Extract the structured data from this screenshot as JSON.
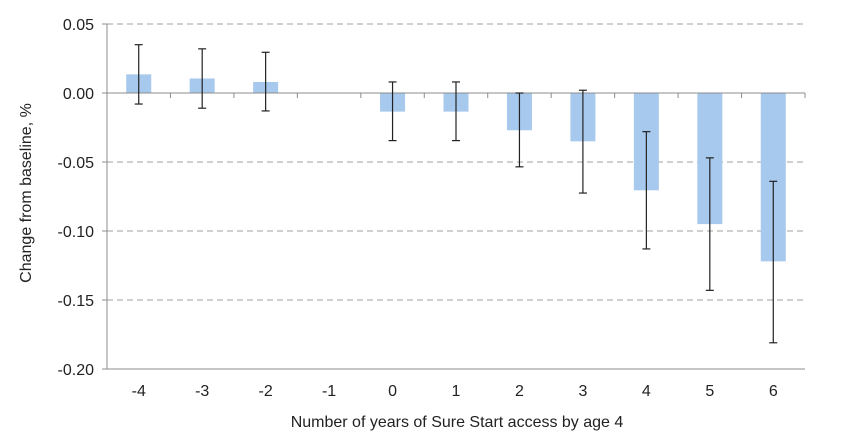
{
  "chart_data": {
    "type": "bar",
    "title": "",
    "xlabel": "Number of years of Sure Start access by age 4",
    "ylabel": "Change from baseline, %",
    "categories": [
      "-4",
      "-3",
      "-2",
      "-1",
      "0",
      "1",
      "2",
      "3",
      "4",
      "5",
      "6"
    ],
    "values": [
      0.0135,
      0.0105,
      0.008,
      0.0,
      -0.0135,
      -0.0135,
      -0.027,
      -0.035,
      -0.0705,
      -0.095,
      -0.122
    ],
    "error_low": [
      -0.008,
      -0.011,
      -0.013,
      null,
      -0.0345,
      -0.0345,
      -0.0535,
      -0.0725,
      -0.113,
      -0.143,
      -0.181
    ],
    "error_high": [
      0.035,
      0.032,
      0.0295,
      null,
      0.008,
      0.008,
      0.0,
      0.002,
      -0.028,
      -0.047,
      -0.064
    ],
    "ylim": [
      -0.2,
      0.05
    ],
    "yticks": [
      0.05,
      0.0,
      -0.05,
      -0.1,
      -0.15,
      -0.2
    ],
    "ytick_labels": [
      "0.05",
      "0.00",
      "-0.05",
      "-0.10",
      "-0.15",
      "-0.20"
    ],
    "grid": true,
    "legend": "none",
    "colors": {
      "bar": "#a7c9ee",
      "error": "#222222",
      "grid": "#b5b5b5",
      "axis": "#8c8c8c"
    }
  }
}
